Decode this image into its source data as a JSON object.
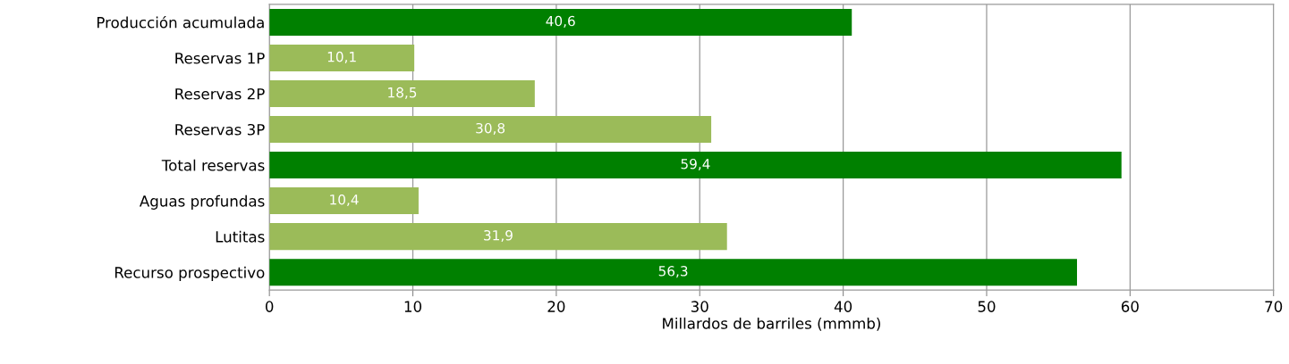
{
  "chart_data": {
    "type": "bar",
    "orientation": "horizontal",
    "xlabel": "Millardos de barriles (mmmb)",
    "categories": [
      "Producción acumulada",
      "Reservas 1P",
      "Reservas 2P",
      "Reservas 3P",
      "Total reservas",
      "Aguas profundas",
      "Lutitas",
      "Recurso prospectivo"
    ],
    "values": [
      40.6,
      10.1,
      18.5,
      30.8,
      59.4,
      10.4,
      31.9,
      56.3
    ],
    "colors": [
      "#008000",
      "#9bbb59",
      "#9bbb59",
      "#9bbb59",
      "#008000",
      "#9bbb59",
      "#9bbb59",
      "#008000"
    ],
    "value_labels": [
      "40,6",
      "10,1",
      "18,5",
      "30,8",
      "59,4",
      "10,4",
      "31,9",
      "56,3"
    ],
    "xlim": [
      0,
      70
    ],
    "xticks": [
      0,
      10,
      20,
      30,
      40,
      50,
      60,
      70
    ],
    "grid": "x"
  }
}
